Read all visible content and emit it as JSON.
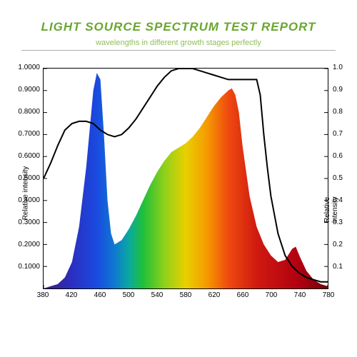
{
  "header": {
    "title": "LIGHT SOURCE SPECTRUM TEST REPORT",
    "title_color": "#6aa631",
    "title_fontsize": 17,
    "subtitle": "wavelengths in different growth stages perfectly",
    "subtitle_color": "#8fbf58",
    "subtitle_fontsize": 11
  },
  "chart": {
    "type": "area-spectrum",
    "background_color": "#ffffff",
    "border_color": "#000000",
    "axis": {
      "xmin": 380,
      "xmax": 780,
      "ymin": 0,
      "ymax": 1.0,
      "x_ticks": [
        380,
        420,
        460,
        500,
        540,
        580,
        620,
        660,
        700,
        740,
        780
      ],
      "y_left_ticks": [
        "0.1000",
        "0.2000",
        "0.3000",
        "0.4000",
        "0.5000",
        "0.6000",
        "0.7000",
        "0.8000",
        "0.9000",
        "1.0000"
      ],
      "y_left_values": [
        0.1,
        0.2,
        0.3,
        0.4,
        0.5,
        0.6,
        0.7,
        0.8,
        0.9,
        1.0
      ],
      "y_right_ticks": [
        "0.1",
        "0.2",
        "0.3",
        "0.4",
        "0.5",
        "0.6",
        "0.7",
        "0.8",
        "0.9",
        "1.0"
      ],
      "ylabel_left": "Relative intensity",
      "ylabel_right": "Relative intensity",
      "label_fontsize": 10,
      "tick_fontsize": 10,
      "tick_len": 5
    },
    "spectrum_area": {
      "points": [
        [
          380,
          0.0
        ],
        [
          390,
          0.01
        ],
        [
          400,
          0.02
        ],
        [
          410,
          0.05
        ],
        [
          420,
          0.12
        ],
        [
          430,
          0.28
        ],
        [
          440,
          0.55
        ],
        [
          450,
          0.9
        ],
        [
          455,
          0.98
        ],
        [
          460,
          0.95
        ],
        [
          465,
          0.7
        ],
        [
          470,
          0.4
        ],
        [
          475,
          0.25
        ],
        [
          480,
          0.2
        ],
        [
          490,
          0.22
        ],
        [
          500,
          0.27
        ],
        [
          510,
          0.33
        ],
        [
          520,
          0.4
        ],
        [
          530,
          0.47
        ],
        [
          540,
          0.53
        ],
        [
          550,
          0.58
        ],
        [
          560,
          0.62
        ],
        [
          570,
          0.64
        ],
        [
          580,
          0.66
        ],
        [
          590,
          0.69
        ],
        [
          600,
          0.73
        ],
        [
          610,
          0.78
        ],
        [
          620,
          0.83
        ],
        [
          630,
          0.87
        ],
        [
          640,
          0.9
        ],
        [
          645,
          0.91
        ],
        [
          650,
          0.88
        ],
        [
          655,
          0.8
        ],
        [
          660,
          0.65
        ],
        [
          670,
          0.42
        ],
        [
          680,
          0.28
        ],
        [
          690,
          0.2
        ],
        [
          700,
          0.15
        ],
        [
          710,
          0.12
        ],
        [
          720,
          0.13
        ],
        [
          730,
          0.18
        ],
        [
          735,
          0.19
        ],
        [
          740,
          0.15
        ],
        [
          750,
          0.08
        ],
        [
          760,
          0.04
        ],
        [
          770,
          0.02
        ],
        [
          780,
          0.01
        ]
      ],
      "gradient_stops": [
        [
          380,
          "#3a1e7a"
        ],
        [
          420,
          "#2b2fc1"
        ],
        [
          455,
          "#1a4ae0"
        ],
        [
          480,
          "#0f79d0"
        ],
        [
          500,
          "#0aa8a0"
        ],
        [
          520,
          "#1fbf3a"
        ],
        [
          550,
          "#8fd01a"
        ],
        [
          580,
          "#e8d000"
        ],
        [
          610,
          "#f59a00"
        ],
        [
          640,
          "#ef4a10"
        ],
        [
          680,
          "#d01a10"
        ],
        [
          740,
          "#b00010"
        ],
        [
          780,
          "#700008"
        ]
      ]
    },
    "response_curve": {
      "stroke": "#000000",
      "stroke_width": 2,
      "points": [
        [
          380,
          0.5
        ],
        [
          390,
          0.57
        ],
        [
          400,
          0.65
        ],
        [
          410,
          0.72
        ],
        [
          420,
          0.75
        ],
        [
          430,
          0.76
        ],
        [
          440,
          0.76
        ],
        [
          450,
          0.75
        ],
        [
          460,
          0.72
        ],
        [
          470,
          0.7
        ],
        [
          480,
          0.69
        ],
        [
          490,
          0.7
        ],
        [
          500,
          0.73
        ],
        [
          510,
          0.77
        ],
        [
          520,
          0.82
        ],
        [
          530,
          0.87
        ],
        [
          540,
          0.92
        ],
        [
          550,
          0.96
        ],
        [
          560,
          0.99
        ],
        [
          570,
          1.0
        ],
        [
          580,
          1.0
        ],
        [
          590,
          1.0
        ],
        [
          600,
          0.99
        ],
        [
          610,
          0.98
        ],
        [
          620,
          0.97
        ],
        [
          630,
          0.96
        ],
        [
          640,
          0.95
        ],
        [
          650,
          0.95
        ],
        [
          660,
          0.95
        ],
        [
          670,
          0.95
        ],
        [
          680,
          0.95
        ],
        [
          685,
          0.88
        ],
        [
          690,
          0.7
        ],
        [
          695,
          0.55
        ],
        [
          700,
          0.42
        ],
        [
          710,
          0.25
        ],
        [
          720,
          0.15
        ],
        [
          730,
          0.1
        ],
        [
          740,
          0.07
        ],
        [
          750,
          0.05
        ],
        [
          760,
          0.04
        ],
        [
          770,
          0.03
        ],
        [
          780,
          0.03
        ]
      ]
    }
  }
}
